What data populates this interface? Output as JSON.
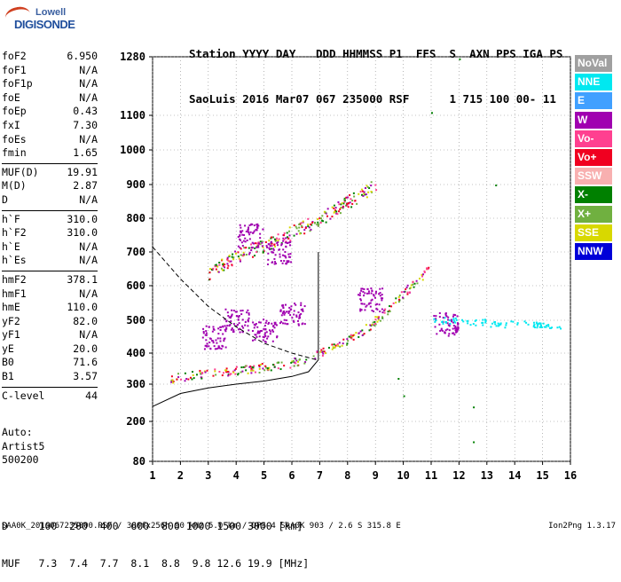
{
  "logo": {
    "line1": "Lowell",
    "line2": "DIGISONDE"
  },
  "header": {
    "line1": "Station YYYY DAY   DDD HHMMSS P1  FFS  S  AXN PPS IGA PS",
    "line2": "SaoLuis 2016 Mar07 067 235000 RSF      1 715 100 00- 11"
  },
  "params": [
    {
      "label": "foF2",
      "value": "6.950"
    },
    {
      "label": "foF1",
      "value": "N/A"
    },
    {
      "label": "foF1p",
      "value": "N/A"
    },
    {
      "label": "foE",
      "value": "N/A"
    },
    {
      "label": "foEp",
      "value": "0.43"
    },
    {
      "label": "fxI",
      "value": "7.30"
    },
    {
      "label": "foEs",
      "value": "N/A"
    },
    {
      "label": "fmin",
      "value": "1.65"
    },
    {
      "label": "MUF(D)",
      "value": "19.91"
    },
    {
      "label": "M(D)",
      "value": "2.87"
    },
    {
      "label": "D",
      "value": "N/A"
    },
    {
      "label": "h`F",
      "value": "310.0"
    },
    {
      "label": "h`F2",
      "value": "310.0"
    },
    {
      "label": "h`E",
      "value": "N/A"
    },
    {
      "label": "h`Es",
      "value": "N/A"
    },
    {
      "label": "hmF2",
      "value": "378.1"
    },
    {
      "label": "hmF1",
      "value": "N/A"
    },
    {
      "label": "hmE",
      "value": "110.0"
    },
    {
      "label": "yF2",
      "value": "82.0"
    },
    {
      "label": "yF1",
      "value": "N/A"
    },
    {
      "label": "yE",
      "value": "20.0"
    },
    {
      "label": "B0",
      "value": "71.6"
    },
    {
      "label": "B1",
      "value": "3.57"
    },
    {
      "label": "C-level",
      "value": "44"
    }
  ],
  "auto": {
    "line1": "Auto:",
    "line2": "Artist5",
    "line3": "500200"
  },
  "legend": [
    {
      "label": "NoVal",
      "bg": "#a0a0a0",
      "fg": "#ffffff"
    },
    {
      "label": "NNE",
      "bg": "#00e8f0",
      "fg": "#ffffff"
    },
    {
      "label": "E",
      "bg": "#40a0ff",
      "fg": "#ffffff"
    },
    {
      "label": "W",
      "bg": "#a000b0",
      "fg": "#ffffff"
    },
    {
      "label": "Vo-",
      "bg": "#ff4090",
      "fg": "#ffffff"
    },
    {
      "label": "Vo+",
      "bg": "#f00020",
      "fg": "#ffffff"
    },
    {
      "label": "SSW",
      "bg": "#f8b0b0",
      "fg": "#ffffff"
    },
    {
      "label": "X-",
      "bg": "#008000",
      "fg": "#ffffff"
    },
    {
      "label": "X+",
      "bg": "#70b040",
      "fg": "#ffffff"
    },
    {
      "label": "SSE",
      "bg": "#d8d800",
      "fg": "#ffffff"
    },
    {
      "label": "NNW",
      "bg": "#0000d8",
      "fg": "#ffffff"
    }
  ],
  "dtable": {
    "line1": "D     100  200  400  600  800 1000 1500 3000 [km]",
    "line2": "MUF   7.3  7.4  7.7  8.1  8.8  9.8 12.6 19.9 [MHz]"
  },
  "footer": {
    "left": "SAA0K_2016067235000.RSF / 300fx256h 50 kHz 5.0 km / DPS-4 SAA0K 903 / 2.6 S 315.8 E",
    "right": "Ion2Png 1.3.17"
  },
  "chart_data": {
    "type": "scatter",
    "x_ticks": [
      "1",
      "2",
      "3",
      "4",
      "5",
      "6",
      "7",
      "8",
      "9",
      "10",
      "11",
      "12",
      "13",
      "14",
      "15",
      "16"
    ],
    "y_ticks": [
      "80",
      "200",
      "300",
      "400",
      "500",
      "600",
      "700",
      "800",
      "900",
      "1000",
      "1100",
      "1280"
    ],
    "xlim": [
      1,
      16
    ],
    "ylim": [
      80,
      1280
    ],
    "y_tick_values": [
      80,
      200,
      300,
      400,
      500,
      600,
      700,
      800,
      900,
      1000,
      1100,
      1280
    ],
    "grid": "dotted",
    "series": [
      {
        "name": "F2 trace",
        "color_key": "mixed",
        "points": [
          [
            1.6,
            320
          ],
          [
            2.0,
            325
          ],
          [
            2.5,
            332
          ],
          [
            3.0,
            338
          ],
          [
            3.5,
            342
          ],
          [
            4.0,
            346
          ],
          [
            4.5,
            350
          ],
          [
            5.0,
            356
          ],
          [
            5.5,
            362
          ],
          [
            6.0,
            370
          ],
          [
            6.5,
            385
          ],
          [
            6.9,
            400
          ],
          [
            7.5,
            420
          ],
          [
            8.0,
            440
          ],
          [
            8.5,
            470
          ],
          [
            9.0,
            500
          ],
          [
            9.5,
            540
          ],
          [
            10.0,
            580
          ],
          [
            10.5,
            620
          ],
          [
            10.9,
            650
          ]
        ]
      },
      {
        "name": "second hop",
        "color_key": "mixed",
        "points": [
          [
            3.0,
            640
          ],
          [
            3.5,
            665
          ],
          [
            4.0,
            690
          ],
          [
            5.0,
            720
          ],
          [
            6.0,
            760
          ],
          [
            7.0,
            800
          ],
          [
            8.0,
            850
          ],
          [
            9.0,
            900
          ]
        ]
      },
      {
        "name": "spread W",
        "color_key": "W",
        "points": [
          [
            3.2,
            450
          ],
          [
            4.0,
            500
          ],
          [
            5.0,
            470
          ],
          [
            6.0,
            520
          ],
          [
            4.5,
            750
          ],
          [
            5.5,
            700
          ],
          [
            8.8,
            560
          ],
          [
            11.5,
            490
          ]
        ]
      },
      {
        "name": "NNE cluster",
        "color_key": "NNE",
        "points": [
          [
            11.5,
            500
          ],
          [
            12.5,
            495
          ],
          [
            13.5,
            490
          ],
          [
            14.5,
            490
          ],
          [
            15.2,
            485
          ]
        ]
      }
    ],
    "profile_curve": [
      [
        1,
        240
      ],
      [
        2,
        275
      ],
      [
        3,
        290
      ],
      [
        4,
        300
      ],
      [
        5,
        310
      ],
      [
        6,
        325
      ],
      [
        6.6,
        340
      ],
      [
        6.95,
        378
      ]
    ],
    "dashed_curve": [
      [
        1,
        715
      ],
      [
        2,
        620
      ],
      [
        3,
        540
      ],
      [
        4,
        480
      ],
      [
        5,
        430
      ],
      [
        6,
        400
      ],
      [
        6.9,
        378
      ]
    ],
    "isolated_points": [
      [
        12,
        1275
      ],
      [
        11,
        1110
      ],
      [
        13.3,
        900
      ],
      [
        12.5,
        240
      ],
      [
        10,
        270
      ],
      [
        12.5,
        140
      ],
      [
        9.8,
        320
      ]
    ]
  }
}
